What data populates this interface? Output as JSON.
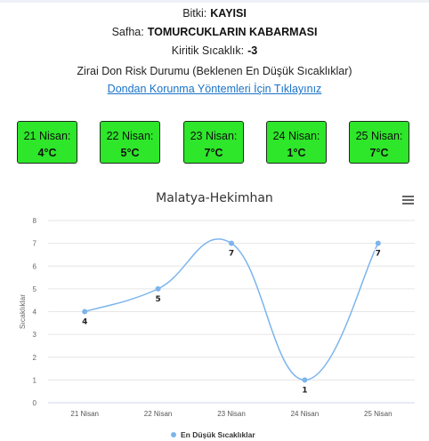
{
  "info": {
    "plant_label": "Bitki:",
    "plant_value": "KAYISI",
    "stage_label": "Safha:",
    "stage_value": "TOMURCUKLARIN KABARMASI",
    "critical_label": "Kiritik Sıcaklık:",
    "critical_value": "-3",
    "risk_heading": "Zirai Don Risk Durumu (Beklenen En Düşük Sıcaklıklar)",
    "protection_link": "Dondan Korunma Yöntemleri İçin Tıklayınız"
  },
  "days": [
    {
      "date": "21 Nisan:",
      "temp": "4°C"
    },
    {
      "date": "22 Nisan:",
      "temp": "5°C"
    },
    {
      "date": "23 Nisan:",
      "temp": "7°C"
    },
    {
      "date": "24 Nisan:",
      "temp": "1°C"
    },
    {
      "date": "25 Nisan:",
      "temp": "7°C"
    }
  ],
  "colors": {
    "day_box_bg": "#2ee62a",
    "series_line": "#7cb5ec",
    "link": "#1a73c9"
  },
  "chart_menu_icon": "hamburger-menu-icon",
  "chart_data": {
    "type": "line",
    "title": "Malatya-Hekimhan",
    "categories": [
      "21 Nisan",
      "22 Nisan",
      "23 Nisan",
      "24 Nisan",
      "25 Nisan"
    ],
    "series": [
      {
        "name": "En Düşük Sıcaklıklar",
        "values": [
          4,
          5,
          7,
          1,
          7
        ],
        "labels": [
          "4",
          "5",
          "7",
          "1",
          "7"
        ]
      }
    ],
    "xlabel": "",
    "ylabel": "Sıcaklıklar",
    "ylim": [
      0,
      8
    ],
    "yticks": [
      "0",
      "1",
      "2",
      "3",
      "4",
      "5",
      "6",
      "7",
      "8"
    ],
    "grid": true,
    "smooth": true,
    "legend_position": "bottom-center"
  }
}
